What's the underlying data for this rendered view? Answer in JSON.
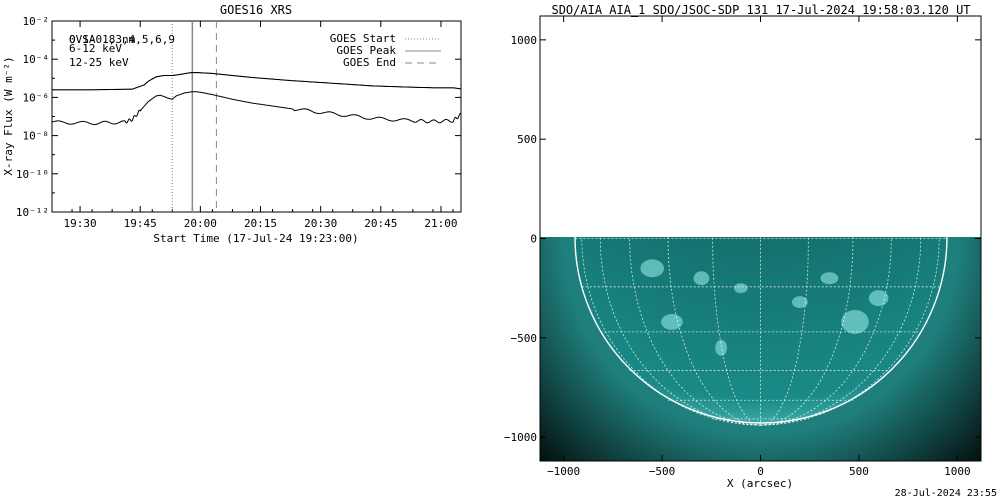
{
  "chart_data": [
    {
      "type": "line",
      "title": "GOES16 XRS",
      "xlabel": "Start Time (17-Jul-24 19:23:00)",
      "ylabel": "X-ray Flux (W m⁻²)",
      "yscale": "log",
      "ylim": [
        1e-12,
        0.01
      ],
      "ytick_labels": [
        "10⁻¹²",
        "10⁻¹⁰",
        "10⁻⁸",
        "10⁻⁶",
        "10⁻⁴",
        "10⁻²"
      ],
      "xlim_minutes_from_start": [
        0,
        102
      ],
      "xtick_labels": [
        "19:30",
        "19:45",
        "20:00",
        "20:15",
        "20:30",
        "20:45",
        "21:00"
      ],
      "xtick_minutes_from_start": [
        7,
        22,
        37,
        52,
        67,
        82,
        97
      ],
      "energy_labels": [
        {
          "text": "0.1-0.8 nm",
          "color": "#000000"
        },
        {
          "text": "6-12 keV",
          "color": "#cc00cc"
        },
        {
          "text": "12-25 keV",
          "color": "#22cc22"
        }
      ],
      "overlap_label": "OVSA 1,3,4,5,6,9",
      "legend_position": "top-right",
      "legend": [
        {
          "name": "GOES Start",
          "style": "dotted"
        },
        {
          "name": "GOES Peak",
          "style": "solid"
        },
        {
          "name": "GOES End",
          "style": "dashed"
        }
      ],
      "event_lines_minutes": {
        "start": 30,
        "peak": 35,
        "end": 41
      },
      "series": [
        {
          "name": "GOES long channel",
          "x": [
            0,
            10,
            20,
            23,
            24,
            26,
            28,
            29,
            30,
            32,
            34,
            35,
            36,
            38,
            40,
            45,
            50,
            60,
            70,
            80,
            90,
            95,
            100,
            102
          ],
          "y": [
            2.5e-06,
            2.5e-06,
            2.7e-06,
            4.5e-06,
            7e-06,
            1.2e-05,
            1.4e-05,
            1.4e-05,
            1.4e-05,
            1.6e-05,
            1.9e-05,
            2e-05,
            2e-05,
            1.9e-05,
            1.8e-05,
            1.4e-05,
            1.1e-05,
            7.5e-06,
            5.5e-06,
            4e-06,
            3.4e-06,
            3.2e-06,
            3.2e-06,
            2.8e-06
          ]
        },
        {
          "name": "GOES short channel",
          "x": [
            0,
            10,
            18,
            20,
            22,
            24,
            26,
            27,
            28,
            29,
            30,
            31,
            33,
            35,
            36,
            38,
            40,
            45,
            50,
            60,
            70,
            80,
            90,
            95,
            100,
            102
          ],
          "y": [
            5e-08,
            4.5e-08,
            5e-08,
            7e-08,
            2e-07,
            6e-07,
            1.2e-06,
            1.3e-06,
            1.1e-06,
            9e-07,
            8e-07,
            1.2e-06,
            1.7e-06,
            2e-06,
            2e-06,
            1.7e-06,
            1.4e-06,
            8e-07,
            5e-07,
            2.5e-07,
            1.4e-07,
            8e-08,
            6e-08,
            5.5e-08,
            6e-08,
            1.3e-07
          ]
        }
      ]
    },
    {
      "type": "heatmap",
      "title": "SDO/AIA AIA_1 SDO/JSOC-SDP 131 17-Jul-2024 19:58:03.120 UT",
      "xlabel": "X (arcsec)",
      "ylabel": "",
      "xlim": [
        -1120,
        1120
      ],
      "ylim": [
        -1120,
        1120
      ],
      "xtick_labels": [
        "−1000",
        "−500",
        "0",
        "500",
        "1000"
      ],
      "xtick_values": [
        -1000,
        -500,
        0,
        500,
        1000
      ],
      "ytick_labels": [
        "−1000",
        "−500",
        "0",
        "500",
        "1000"
      ],
      "ytick_values": [
        -1000,
        -500,
        0,
        500,
        1000
      ],
      "image_y_range": [
        -1120,
        0
      ],
      "solar_radius_arcsec": 940,
      "grid": true,
      "colormap": "teal"
    }
  ],
  "footer": {
    "timestamp": "28-Jul-2024 23:55"
  }
}
